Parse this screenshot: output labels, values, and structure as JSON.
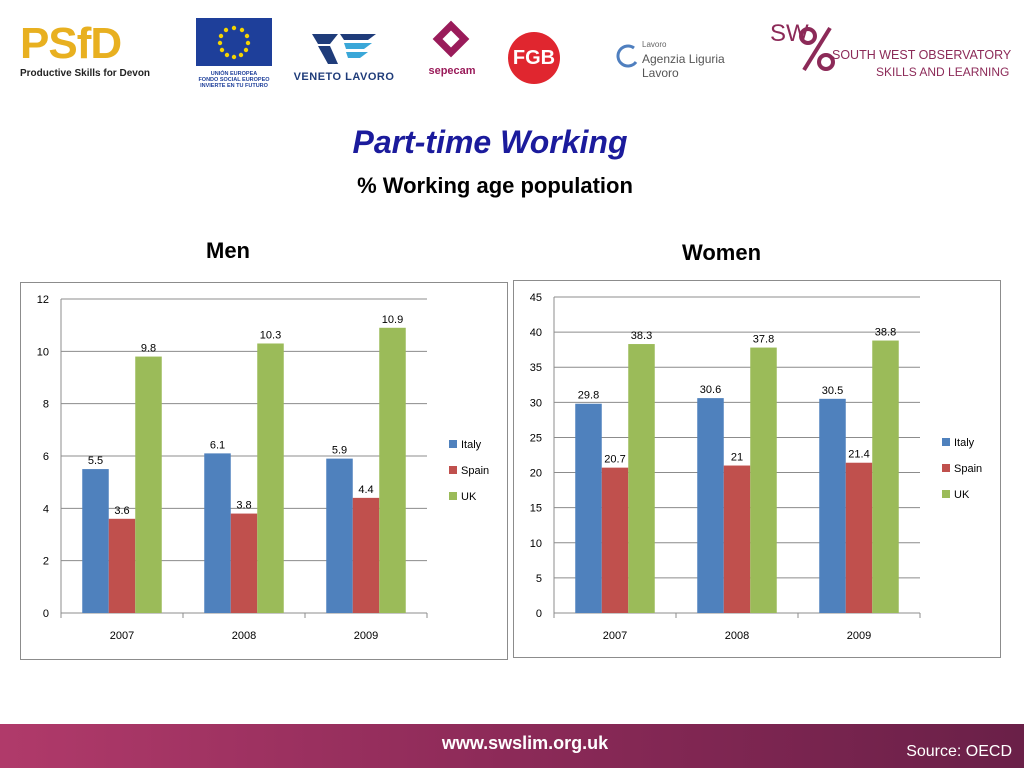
{
  "logos": {
    "psfd": {
      "letters": "PSfD",
      "tagline": "Productive Skills for Devon"
    },
    "eu": {
      "line1": "UNIÓN EUROPEA",
      "line2": "FONDO SOCIAL EUROPEO",
      "line3": "INVIERTE EN TU FUTURO"
    },
    "veneto": {
      "name": "VENETO LAVORO"
    },
    "sepecam": {
      "name": "sepecam"
    },
    "fgb": {
      "name": "FGB"
    },
    "liguria": {
      "name": "Agenzia Liguria Lavoro",
      "small": "Lavoro"
    },
    "swo": {
      "mark": "SW",
      "line1": "SOUTH WEST OBSERVATORY",
      "line2": "SKILLS AND LEARNING"
    }
  },
  "title": "Part-time Working",
  "subtitle": "% Working age population",
  "colors": {
    "Italy": "#4f81bd",
    "Spain": "#c0504d",
    "UK": "#9bbb59"
  },
  "chart_data": [
    {
      "type": "bar",
      "title": "Men",
      "categories": [
        "2007",
        "2008",
        "2009"
      ],
      "series": [
        {
          "name": "Italy",
          "values": [
            5.5,
            6.1,
            5.9
          ]
        },
        {
          "name": "Spain",
          "values": [
            3.6,
            3.8,
            4.4
          ]
        },
        {
          "name": "UK",
          "values": [
            9.8,
            10.3,
            10.9
          ]
        }
      ],
      "ylim": [
        0,
        12
      ],
      "yticks": [
        0,
        2,
        4,
        6,
        8,
        10,
        12
      ],
      "grid": true,
      "legend": "right"
    },
    {
      "type": "bar",
      "title": "Women",
      "categories": [
        "2007",
        "2008",
        "2009"
      ],
      "series": [
        {
          "name": "Italy",
          "values": [
            29.8,
            30.6,
            30.5
          ]
        },
        {
          "name": "Spain",
          "values": [
            20.7,
            21,
            21.4
          ]
        },
        {
          "name": "UK",
          "values": [
            38.3,
            37.8,
            38.8
          ]
        }
      ],
      "ylim": [
        0,
        45
      ],
      "yticks": [
        0,
        5,
        10,
        15,
        20,
        25,
        30,
        35,
        40,
        45
      ],
      "grid": true,
      "legend": "right"
    }
  ],
  "footer": {
    "url": "www.swslim.org.uk",
    "source": "Source: OECD"
  }
}
